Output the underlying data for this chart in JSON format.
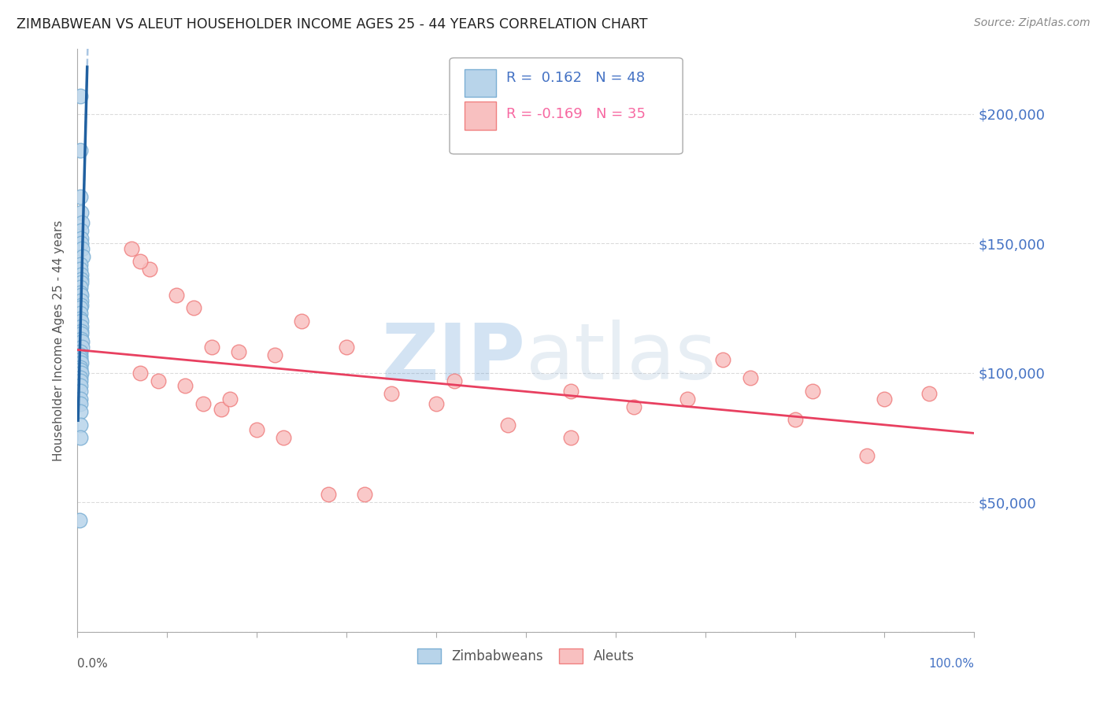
{
  "title": "ZIMBABWEAN VS ALEUT HOUSEHOLDER INCOME AGES 25 - 44 YEARS CORRELATION CHART",
  "source": "Source: ZipAtlas.com",
  "ylabel": "Householder Income Ages 25 - 44 years",
  "xlim": [
    0.0,
    1.0
  ],
  "ylim": [
    0,
    225000
  ],
  "yticks": [
    0,
    50000,
    100000,
    150000,
    200000
  ],
  "ytick_labels": [
    "",
    "$50,000",
    "$100,000",
    "$150,000",
    "$200,000"
  ],
  "grid_color": "#cccccc",
  "background_color": "#ffffff",
  "legend_R1": "0.162",
  "legend_N1": "48",
  "legend_R2": "-0.169",
  "legend_N2": "35",
  "blue_edge": "#7bafd4",
  "blue_fill": "#b8d4ea",
  "pink_edge": "#f08080",
  "pink_fill": "#f8c0c0",
  "trend_blue_color": "#2060a0",
  "trend_pink_color": "#e84060",
  "dashed_blue_color": "#a0c0e0",
  "watermark": "ZIPatlas",
  "zim_x": [
    0.003,
    0.003,
    0.003,
    0.004,
    0.005,
    0.004,
    0.004,
    0.004,
    0.005,
    0.006,
    0.003,
    0.003,
    0.004,
    0.004,
    0.004,
    0.003,
    0.003,
    0.004,
    0.004,
    0.004,
    0.003,
    0.003,
    0.003,
    0.004,
    0.004,
    0.004,
    0.004,
    0.004,
    0.005,
    0.005,
    0.003,
    0.003,
    0.003,
    0.003,
    0.004,
    0.003,
    0.003,
    0.004,
    0.003,
    0.003,
    0.003,
    0.003,
    0.003,
    0.003,
    0.003,
    0.003,
    0.003,
    0.002
  ],
  "zim_y": [
    207000,
    186000,
    168000,
    162000,
    158000,
    155000,
    152000,
    150000,
    148000,
    145000,
    142000,
    140000,
    138000,
    136000,
    135000,
    133000,
    131000,
    130000,
    128000,
    126000,
    125000,
    123000,
    121000,
    120000,
    118000,
    116000,
    115000,
    113000,
    112000,
    110000,
    108000,
    107000,
    106000,
    105000,
    104000,
    102000,
    101000,
    100000,
    98000,
    97000,
    95000,
    93000,
    90000,
    88000,
    85000,
    80000,
    75000,
    43000
  ],
  "aleut_x": [
    0.06,
    0.08,
    0.07,
    0.11,
    0.15,
    0.13,
    0.3,
    0.22,
    0.25,
    0.18,
    0.35,
    0.4,
    0.48,
    0.55,
    0.62,
    0.68,
    0.75,
    0.82,
    0.9,
    0.55,
    0.07,
    0.09,
    0.12,
    0.14,
    0.16,
    0.17,
    0.2,
    0.23,
    0.28,
    0.32,
    0.42,
    0.72,
    0.8,
    0.88,
    0.95
  ],
  "aleut_y": [
    148000,
    140000,
    143000,
    130000,
    110000,
    125000,
    110000,
    107000,
    120000,
    108000,
    92000,
    88000,
    80000,
    93000,
    87000,
    90000,
    98000,
    93000,
    90000,
    75000,
    100000,
    97000,
    95000,
    88000,
    86000,
    90000,
    78000,
    75000,
    53000,
    53000,
    97000,
    105000,
    82000,
    68000,
    92000
  ]
}
